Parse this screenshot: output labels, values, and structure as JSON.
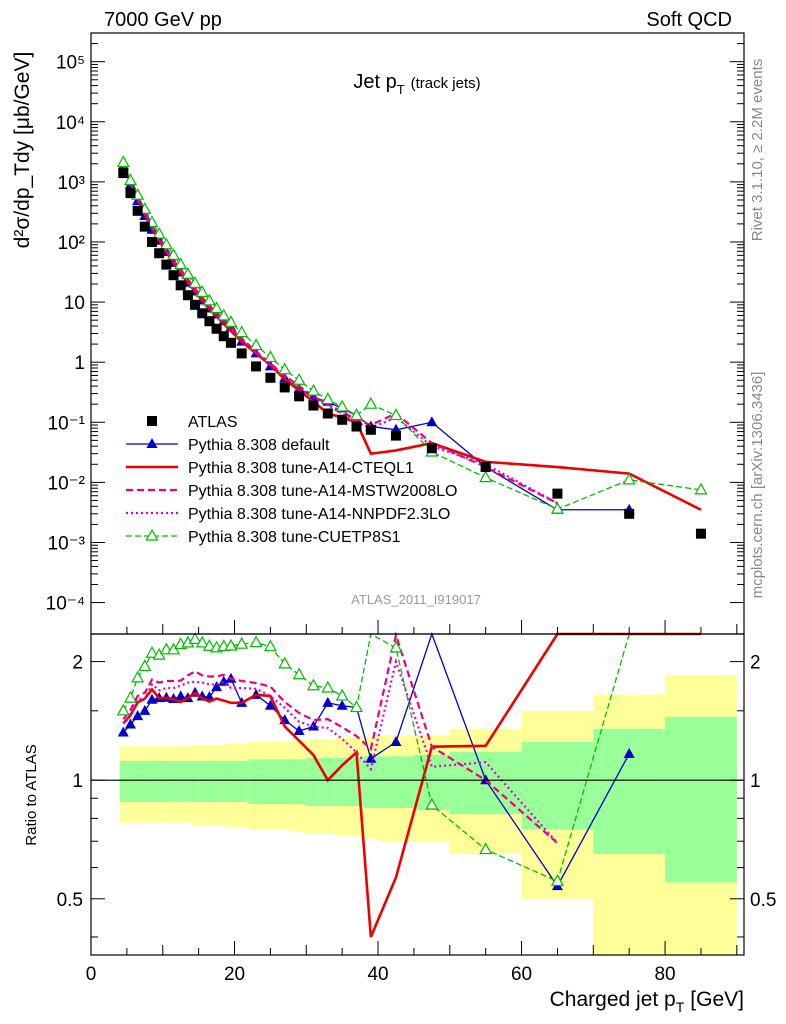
{
  "header": {
    "left": "7000 GeV pp",
    "right": "Soft QCD"
  },
  "side": {
    "rivet": "Rivet 3.1.10, ≥ 2.2M events",
    "mcplots": "mcplots.cern.ch [arXiv:1306.3436]"
  },
  "chart_data": [
    {
      "type": "scatter",
      "title": "Jet p",
      "title_sub": "T",
      "title_note": "(track jets)",
      "analysis_label": "ATLAS_2011_I919017",
      "ylabel": "d²σ/dp_Tdy [μb/GeV]",
      "yscale": "log",
      "xlim": [
        0,
        91
      ],
      "ylim": [
        3e-05,
        300000
      ],
      "y_ticks": [
        {
          "v": 100000,
          "label": "10⁵"
        },
        {
          "v": 10000,
          "label": "10⁴"
        },
        {
          "v": 1000,
          "label": "10³"
        },
        {
          "v": 100,
          "label": "10²"
        },
        {
          "v": 10,
          "label": "10"
        },
        {
          "v": 1,
          "label": "1"
        },
        {
          "v": 0.1,
          "label": "10⁻¹"
        },
        {
          "v": 0.01,
          "label": "10⁻²"
        },
        {
          "v": 0.001,
          "label": "10⁻³"
        },
        {
          "v": 0.0001,
          "label": "10⁻⁴"
        }
      ],
      "legend_position": "middle-left",
      "series": [
        {
          "name": "ATLAS",
          "color": "#000000",
          "style": "data",
          "x": [
            4.5,
            5.5,
            6.5,
            7.5,
            8.5,
            9.5,
            10.5,
            11.5,
            12.5,
            13.5,
            14.5,
            15.5,
            16.5,
            17.5,
            18.5,
            19.5,
            21,
            23,
            25,
            27,
            29,
            31,
            33,
            35,
            37,
            39,
            42.5,
            47.5,
            55,
            65,
            75,
            85
          ],
          "y": [
            1400,
            650,
            330,
            180,
            100,
            65,
            42,
            28,
            19,
            13,
            9,
            6.5,
            4.8,
            3.6,
            2.7,
            2.1,
            1.4,
            0.85,
            0.55,
            0.38,
            0.27,
            0.19,
            0.14,
            0.11,
            0.085,
            0.075,
            0.06,
            0.037,
            0.018,
            0.0065,
            0.003,
            0.0014
          ]
        },
        {
          "name": "Pythia 8.308 default",
          "color": "#0000cc",
          "style": "solid-thin",
          "marker": "triangle-filled",
          "x": [
            4.5,
            5.5,
            6.5,
            7.5,
            8.5,
            9.5,
            10.5,
            11.5,
            12.5,
            13.5,
            14.5,
            15.5,
            16.5,
            17.5,
            18.5,
            19.5,
            21,
            23,
            25,
            27,
            29,
            31,
            33,
            35,
            37,
            39,
            42.5,
            47.5,
            55,
            65,
            75
          ],
          "y": [
            1850,
            900,
            480,
            270,
            160,
            105,
            68,
            45,
            31,
            21,
            15,
            10.6,
            7.8,
            6.2,
            4.8,
            3.8,
            2.2,
            1.4,
            0.85,
            0.54,
            0.36,
            0.26,
            0.22,
            0.17,
            0.13,
            0.085,
            0.075,
            0.1,
            0.018,
            0.0035,
            0.0035
          ]
        },
        {
          "name": "Pythia 8.308 tune-A14-CTEQL1",
          "color": "#ee0000",
          "style": "solid-thick",
          "x": [
            4.5,
            5.5,
            6.5,
            7.5,
            8.5,
            9.5,
            10.5,
            11.5,
            12.5,
            13.5,
            14.5,
            15.5,
            16.5,
            17.5,
            18.5,
            19.5,
            21,
            23,
            25,
            27,
            29,
            31,
            33,
            35,
            37,
            39,
            42.5,
            47.5,
            55,
            65,
            75,
            85
          ],
          "y": [
            1950,
            950,
            520,
            290,
            170,
            105,
            68,
            45,
            30,
            21,
            15,
            10.5,
            7.6,
            5.8,
            4.3,
            3.3,
            2.2,
            1.4,
            0.9,
            0.52,
            0.34,
            0.22,
            0.14,
            0.12,
            0.1,
            0.03,
            0.034,
            0.045,
            0.022,
            0.018,
            0.014,
            0.0035
          ]
        },
        {
          "name": "Pythia 8.308 tune-A14-MSTW2008LO",
          "color": "#ee0077",
          "style": "dashed",
          "x": [
            4.5,
            5.5,
            6.5,
            7.5,
            8.5,
            9.5,
            10.5,
            11.5,
            12.5,
            13.5,
            14.5,
            15.5,
            16.5,
            17.5,
            18.5,
            19.5,
            21,
            23,
            25,
            27,
            29,
            31,
            33,
            35,
            37,
            39,
            42.5,
            47.5,
            55,
            65
          ],
          "y": [
            2000,
            980,
            540,
            300,
            180,
            115,
            75,
            50,
            34,
            24,
            17,
            12,
            8.8,
            6.6,
            5,
            3.8,
            2.5,
            1.5,
            0.95,
            0.6,
            0.4,
            0.27,
            0.2,
            0.15,
            0.11,
            0.09,
            0.14,
            0.045,
            0.018,
            0.0045
          ]
        },
        {
          "name": "Pythia 8.308 tune-A14-NNPDF2.3LO",
          "color": "#dd00dd",
          "style": "dotted",
          "x": [
            4.5,
            5.5,
            6.5,
            7.5,
            8.5,
            9.5,
            10.5,
            11.5,
            12.5,
            13.5,
            14.5,
            15.5,
            16.5,
            17.5,
            18.5,
            19.5,
            21,
            23,
            25,
            27,
            29,
            31,
            33,
            35,
            37,
            39,
            42.5,
            47.5,
            55,
            65
          ],
          "y": [
            1950,
            960,
            530,
            290,
            175,
            110,
            72,
            48,
            33,
            23,
            16,
            11.5,
            8.4,
            6.3,
            4.8,
            3.6,
            2.4,
            1.45,
            0.9,
            0.58,
            0.38,
            0.26,
            0.19,
            0.14,
            0.1,
            0.08,
            0.12,
            0.04,
            0.02,
            0.0045
          ]
        },
        {
          "name": "Pythia 8.308 tune-CUETP8S1",
          "color": "#00bb00",
          "style": "dashed-thin",
          "marker": "triangle-open",
          "x": [
            4.5,
            5.5,
            6.5,
            7.5,
            8.5,
            9.5,
            10.5,
            11.5,
            12.5,
            13.5,
            14.5,
            15.5,
            16.5,
            17.5,
            18.5,
            19.5,
            21,
            23,
            25,
            27,
            29,
            31,
            33,
            35,
            37,
            39,
            42.5,
            47.5,
            55,
            65,
            75,
            85
          ],
          "y": [
            2100,
            1050,
            600,
            350,
            210,
            135,
            90,
            60,
            42,
            29,
            20.5,
            14.5,
            10.5,
            7.8,
            5.9,
            4.6,
            3.1,
            1.9,
            1.2,
            0.75,
            0.5,
            0.33,
            0.24,
            0.18,
            0.13,
            0.2,
            0.13,
            0.032,
            0.012,
            0.0036,
            0.011,
            0.0075
          ]
        }
      ]
    },
    {
      "type": "scatter",
      "ylabel": "Ratio to ATLAS",
      "xlabel": "Charged jet p",
      "xlabel_sub": "T",
      "xlabel_unit": "[GeV]",
      "yscale": "log",
      "xlim": [
        0,
        91
      ],
      "ylim": [
        0.36,
        2.35
      ],
      "x_ticks": [
        0,
        20,
        40,
        60,
        80
      ],
      "y_ticks": [
        0.5,
        1,
        2
      ],
      "uncertainty_bands": {
        "edges": [
          4,
          5,
          6,
          7,
          8,
          9,
          10,
          11,
          12,
          13,
          14,
          15,
          16,
          17,
          18,
          19,
          20,
          22,
          24,
          26,
          28,
          30,
          32,
          34,
          36,
          38,
          40,
          45,
          50,
          60,
          70,
          80,
          90
        ],
        "stat_sys_inner_rel": [
          0.12,
          0.12,
          0.12,
          0.12,
          0.12,
          0.12,
          0.12,
          0.12,
          0.12,
          0.12,
          0.12,
          0.12,
          0.12,
          0.12,
          0.12,
          0.12,
          0.12,
          0.13,
          0.13,
          0.13,
          0.13,
          0.14,
          0.14,
          0.14,
          0.14,
          0.15,
          0.15,
          0.16,
          0.18,
          0.25,
          0.35,
          0.45
        ],
        "total_outer_rel": [
          0.22,
          0.22,
          0.22,
          0.22,
          0.22,
          0.22,
          0.22,
          0.22,
          0.22,
          0.22,
          0.23,
          0.23,
          0.23,
          0.23,
          0.23,
          0.24,
          0.24,
          0.25,
          0.25,
          0.25,
          0.26,
          0.27,
          0.27,
          0.28,
          0.28,
          0.29,
          0.3,
          0.3,
          0.35,
          0.5,
          0.65,
          0.85
        ],
        "inner_color": "#99ff99",
        "outer_color": "#ffff99"
      },
      "reference_line": 1
    }
  ]
}
